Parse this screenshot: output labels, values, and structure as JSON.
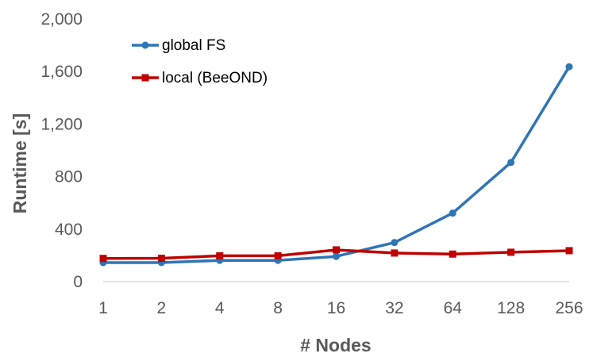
{
  "chart_data": {
    "type": "line",
    "title": "",
    "xlabel": "# Nodes",
    "ylabel": "Runtime [s]",
    "categories": [
      "1",
      "2",
      "4",
      "8",
      "16",
      "32",
      "64",
      "128",
      "256"
    ],
    "ylim": [
      0,
      2000
    ],
    "yticks": [
      "0",
      "400",
      "800",
      "1,200",
      "1,600",
      "2,000"
    ],
    "ytick_values": [
      0,
      400,
      800,
      1200,
      1600,
      2000
    ],
    "grid": false,
    "legend_position": "top-left",
    "series": [
      {
        "name": "global FS",
        "color": "#2E75B6",
        "marker": "circle",
        "values": [
          145,
          145,
          162,
          162,
          192,
          298,
          522,
          908,
          1637
        ]
      },
      {
        "name": "local (BeeOND)",
        "color": "#C00000",
        "marker": "square",
        "values": [
          177,
          178,
          197,
          197,
          242,
          218,
          210,
          224,
          236
        ]
      }
    ]
  }
}
